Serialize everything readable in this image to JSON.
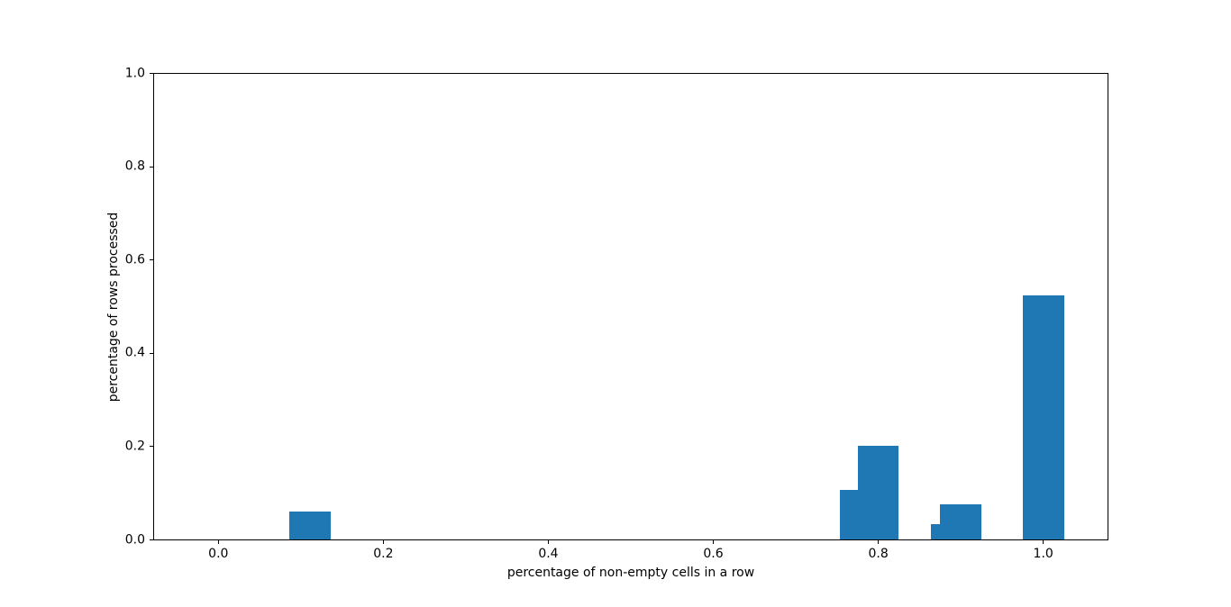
{
  "chart_data": {
    "type": "bar",
    "title": "",
    "xlabel": "percentage of non-empty cells in a row",
    "ylabel": "percentage of rows processed",
    "bar_color": "#1f77b4",
    "bar_width": 0.05,
    "x": [
      0.111,
      0.778,
      0.8,
      0.889,
      0.9,
      1.0
    ],
    "values": [
      0.061,
      0.108,
      0.201,
      0.033,
      0.077,
      0.525
    ],
    "xlim": [
      -0.079,
      1.079
    ],
    "ylim": [
      0.0,
      1.0
    ],
    "x_ticks": [
      0.0,
      0.2,
      0.4,
      0.6,
      0.8,
      1.0
    ],
    "y_ticks": [
      0.0,
      0.2,
      0.4,
      0.6,
      0.8,
      1.0
    ],
    "x_tick_labels": [
      "0.0",
      "0.2",
      "0.4",
      "0.6",
      "0.8",
      "1.0"
    ],
    "y_tick_labels": [
      "0.0",
      "0.2",
      "0.4",
      "0.6",
      "0.8",
      "1.0"
    ],
    "legend": null,
    "grid": false
  }
}
